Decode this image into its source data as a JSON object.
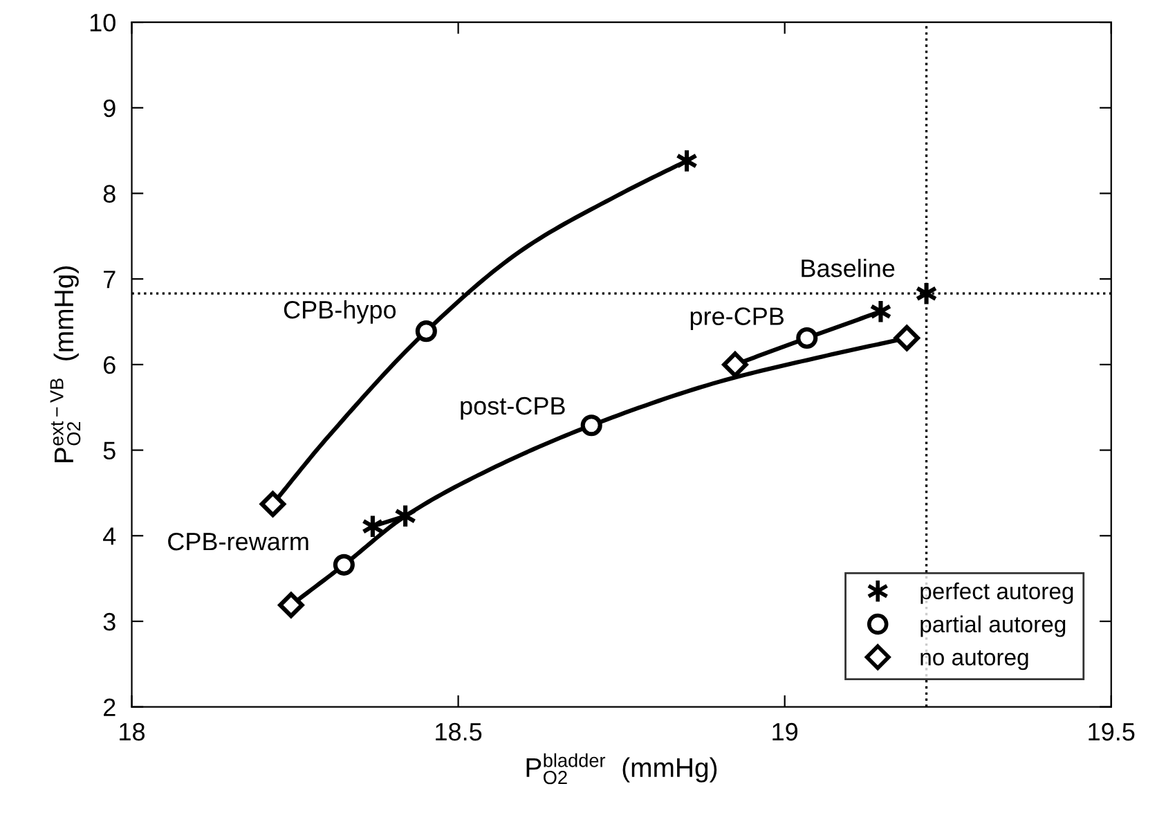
{
  "chart_data": {
    "type": "scatter",
    "xlabel": "P$^{bladder}$$_{O2}$  (mmHg)",
    "ylabel": "P$^{ext−VB}$$_{O2}$  (mmHg)",
    "xlim": [
      18,
      19.5
    ],
    "xticks": [
      18,
      18.5,
      19,
      19.5
    ],
    "ylim": [
      2,
      10
    ],
    "yticks": [
      2,
      3,
      4,
      5,
      6,
      7,
      8,
      9,
      10
    ],
    "grid": false,
    "legend": "bottom right",
    "series": [
      {
        "type": "line",
        "color": "#000000",
        "marker": "none",
        "x": [
          18.216,
          18.3,
          18.451,
          18.6,
          18.75,
          18.85
        ],
        "values": [
          4.37,
          5.15,
          6.39,
          7.35,
          8.0,
          8.38
        ]
      },
      {
        "type": "line",
        "color": "#000000",
        "marker": "none",
        "x": [
          18.244,
          18.325,
          18.419,
          18.55,
          18.704,
          18.9,
          19.05,
          19.187
        ],
        "values": [
          3.19,
          3.66,
          4.23,
          4.78,
          5.29,
          5.8,
          6.08,
          6.31
        ]
      },
      {
        "type": "line",
        "color": "#000000",
        "marker": "none",
        "x": [
          18.369,
          18.419
        ],
        "values": [
          4.11,
          4.23
        ]
      },
      {
        "type": "line",
        "color": "#000000",
        "marker": "none",
        "x": [
          18.924,
          19.034,
          19.147
        ],
        "values": [
          6.0,
          6.31,
          6.62
        ]
      },
      {
        "name": "perfect autoreg",
        "color": "#000000",
        "marker": "cross",
        "x": [
          18.85,
          18.369,
          18.419,
          19.147,
          19.217
        ],
        "values": [
          8.38,
          4.11,
          4.23,
          6.62,
          6.83
        ]
      },
      {
        "name": "partial autoreg",
        "color": "#000000",
        "marker": "circle",
        "x": [
          18.451,
          18.325,
          18.704,
          19.034
        ],
        "values": [
          6.39,
          3.66,
          5.29,
          6.31
        ]
      },
      {
        "name": "no autoreg",
        "color": "#000000",
        "marker": "diamond",
        "x": [
          18.216,
          18.244,
          18.924,
          19.187
        ],
        "values": [
          4.37,
          3.19,
          6.0,
          6.31
        ]
      }
    ],
    "ref_lines": [
      {
        "axis": "y",
        "value": 6.83,
        "color": "#000000",
        "line_style": "dotted"
      },
      {
        "axis": "x",
        "value": 19.217,
        "color": "#000000",
        "line_style": "dotted"
      }
    ],
    "annotations": [
      {
        "text": "CPB-hypo",
        "x": 18.451,
        "y": 6.39
      },
      {
        "text": "post-CPB",
        "x": 18.704,
        "y": 5.29
      },
      {
        "text": "CPB-rewarm",
        "x": 18.325,
        "y": 3.66
      },
      {
        "text": "Baseline",
        "x": 19.217,
        "y": 6.83
      },
      {
        "text": "pre-CPB",
        "x": 18.924,
        "y": 6.0
      }
    ]
  }
}
